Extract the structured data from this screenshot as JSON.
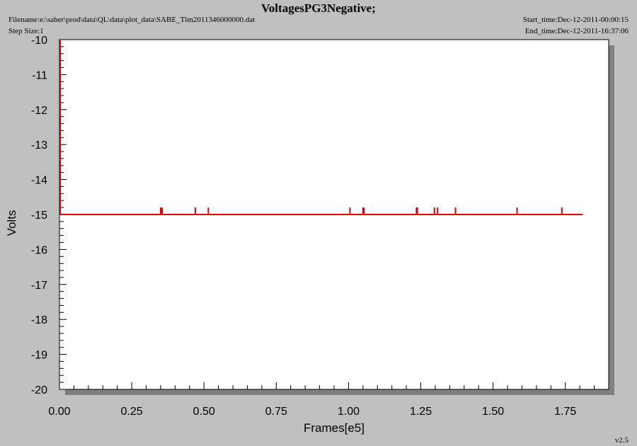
{
  "header": {
    "title": "VoltagesPG3Negative;",
    "filename": "Filename:e:\\saber\\prod\\data\\QL\\data\\plot_data\\SABE_Tlm2011346000000.dat",
    "step_size": "Step Size:1",
    "start_time": "Start_time:Dec-12-2011-00:00:15",
    "end_time": "End_time:Dec-12-2011-16:37:06"
  },
  "footer": {
    "version": "v2.5"
  },
  "colors": {
    "series": "#dd0000",
    "background": "#c0c0c0",
    "plot_area": "#ffffff",
    "shadow": "#7f7f7f"
  },
  "chart_data": {
    "type": "line",
    "title": "VoltagesPG3Negative;",
    "xlabel": "Frames[e5]",
    "ylabel": "Volts",
    "xlim": [
      0.0,
      1.9
    ],
    "ylim": [
      -20,
      -10
    ],
    "x_ticks": [
      "0.00",
      "0.25",
      "0.50",
      "0.75",
      "1.00",
      "1.25",
      "1.50",
      "1.75"
    ],
    "y_ticks": [
      "-10",
      "-11",
      "-12",
      "-13",
      "-14",
      "-15",
      "-16",
      "-17",
      "-18",
      "-19",
      "-20"
    ],
    "grid": false,
    "series": [
      {
        "baseline": -15.0,
        "x_range": [
          0.0,
          1.81
        ],
        "initial_spike": {
          "x": 0.0,
          "from": -15.0,
          "to": -10.0
        },
        "spikes": [
          {
            "x": 0.35,
            "value": -14.8
          },
          {
            "x": 0.355,
            "value": -14.8
          },
          {
            "x": 0.47,
            "value": -14.8
          },
          {
            "x": 0.515,
            "value": -14.8
          },
          {
            "x": 1.005,
            "value": -14.8
          },
          {
            "x": 1.05,
            "value": -14.8
          },
          {
            "x": 1.053,
            "value": -14.8
          },
          {
            "x": 1.235,
            "value": -14.8
          },
          {
            "x": 1.238,
            "value": -14.8
          },
          {
            "x": 1.297,
            "value": -14.8
          },
          {
            "x": 1.308,
            "value": -14.8
          },
          {
            "x": 1.37,
            "value": -14.8
          },
          {
            "x": 1.583,
            "value": -14.8
          },
          {
            "x": 1.738,
            "value": -14.8
          }
        ]
      }
    ]
  }
}
